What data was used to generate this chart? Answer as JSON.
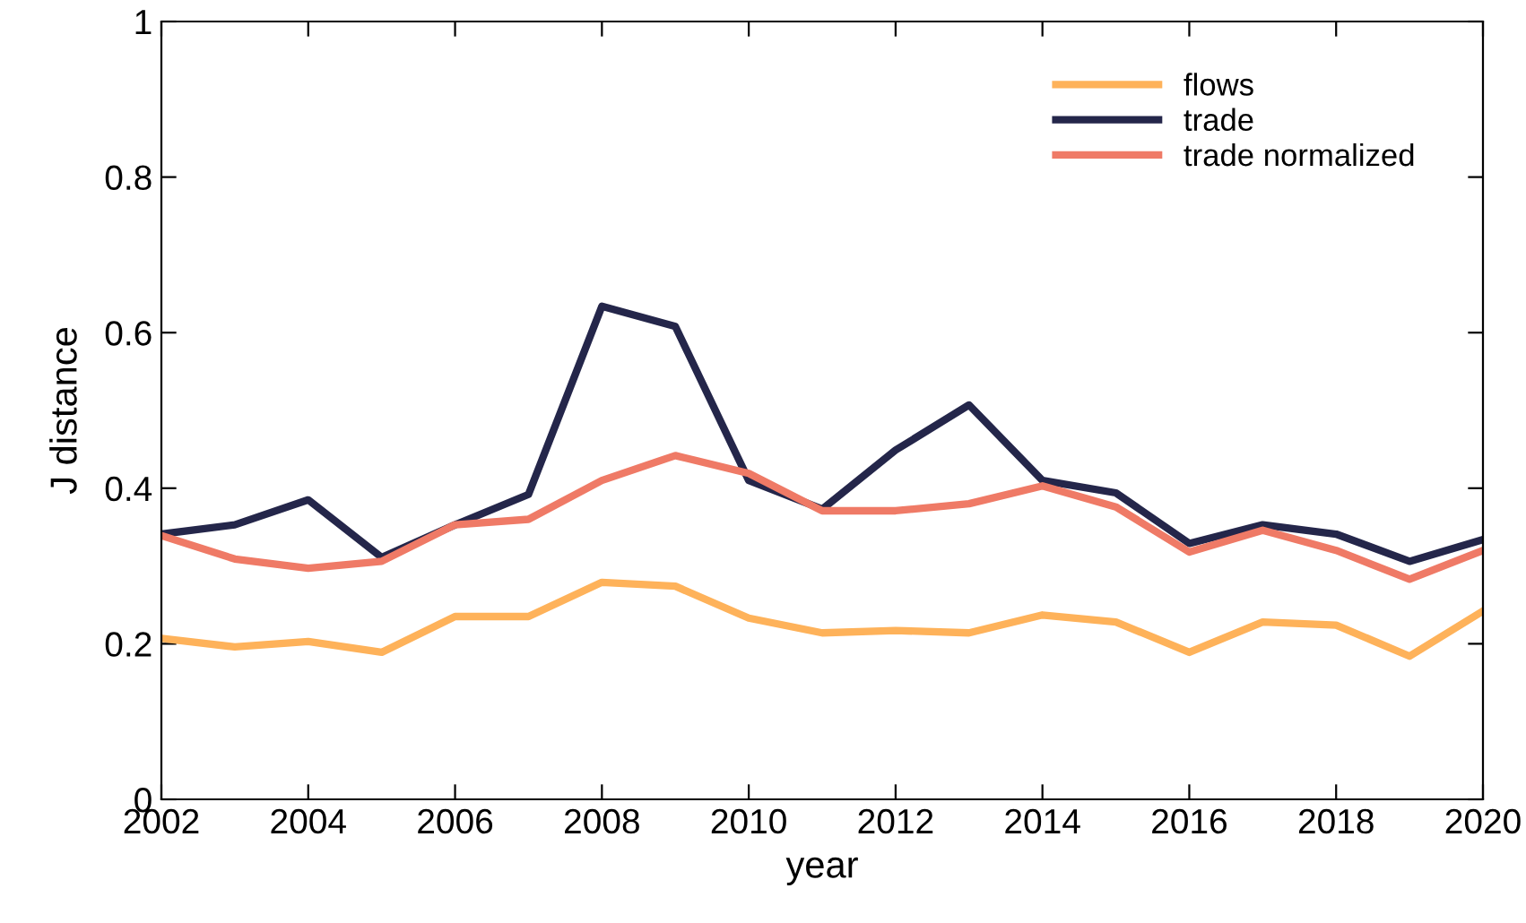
{
  "chart_data": {
    "type": "line",
    "xlabel": "year",
    "ylabel": "J distance",
    "x": [
      2002,
      2003,
      2004,
      2005,
      2006,
      2007,
      2008,
      2009,
      2010,
      2011,
      2012,
      2013,
      2014,
      2015,
      2016,
      2017,
      2018,
      2019,
      2020
    ],
    "series": [
      {
        "name": "flows",
        "color": "#feb25a",
        "values": [
          0.207,
          0.196,
          0.203,
          0.189,
          0.235,
          0.235,
          0.279,
          0.274,
          0.233,
          0.214,
          0.217,
          0.214,
          0.237,
          0.228,
          0.189,
          0.228,
          0.224,
          0.184,
          0.242
        ]
      },
      {
        "name": "trade",
        "color": "#24264a",
        "values": [
          0.341,
          0.353,
          0.385,
          0.311,
          0.353,
          0.392,
          0.634,
          0.608,
          0.41,
          0.373,
          0.449,
          0.507,
          0.41,
          0.394,
          0.329,
          0.353,
          0.341,
          0.306,
          0.334
        ]
      },
      {
        "name": "trade normalized",
        "color": "#ef7a66",
        "values": [
          0.339,
          0.309,
          0.297,
          0.306,
          0.353,
          0.36,
          0.41,
          0.442,
          0.419,
          0.371,
          0.371,
          0.38,
          0.403,
          0.376,
          0.318,
          0.346,
          0.32,
          0.283,
          0.32
        ]
      }
    ],
    "xlim": [
      2002,
      2020
    ],
    "xticks": [
      2002,
      2004,
      2006,
      2008,
      2010,
      2012,
      2014,
      2016,
      2018,
      2020
    ],
    "ylim": [
      0,
      1
    ],
    "yticks": [
      0,
      0.2,
      0.4,
      0.6,
      0.8,
      1
    ],
    "grid": false,
    "legend": "top right",
    "marker": "none",
    "line_style": "solid"
  }
}
